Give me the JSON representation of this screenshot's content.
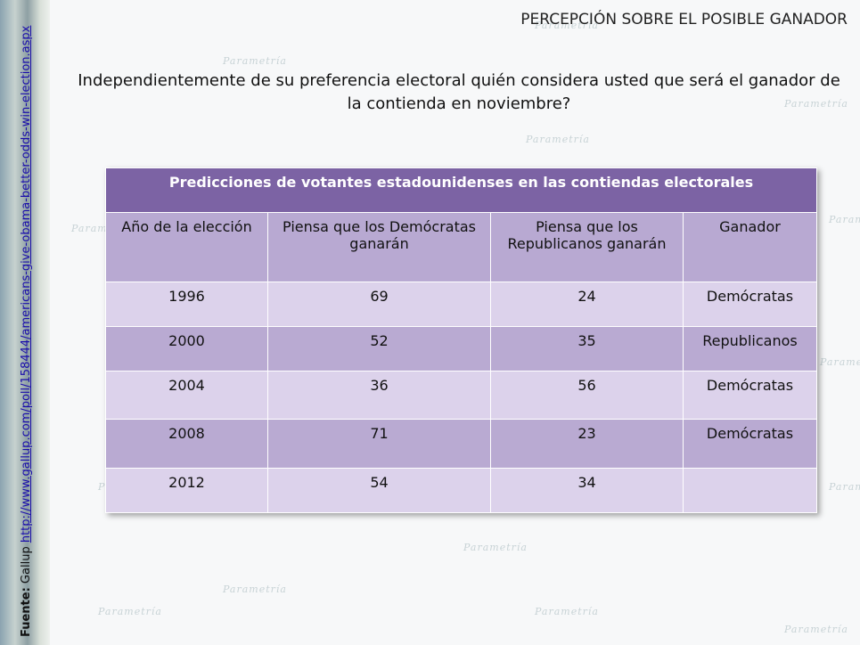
{
  "header": {
    "title": "PERCEPCIÓN SOBRE EL POSIBLE GANADOR"
  },
  "question": "Independientemente de su preferencia electoral quién considera usted que será el ganador de la contienda en noviembre?",
  "background": {
    "watermark": "Parametría"
  },
  "table": {
    "title": "Predicciones de votantes estadounidenses en las contiendas electorales",
    "columns": [
      "Año de la elección",
      "Piensa que los Demócratas ganarán",
      "Piensa que los Republicanos ganarán",
      "Ganador"
    ],
    "rows": [
      [
        1996,
        69,
        24,
        "Demócratas"
      ],
      [
        2000,
        52,
        35,
        "Republicanos"
      ],
      [
        2004,
        36,
        56,
        "Demócratas"
      ],
      [
        2008,
        71,
        23,
        "Demócratas"
      ],
      [
        2012,
        54,
        34,
        null
      ]
    ]
  },
  "source": {
    "label": "Fuente:",
    "name": "Gallup",
    "url": "http://www.gallup.com/poll/158444/americans-give-obama-better-odds-win-election.aspx"
  }
}
